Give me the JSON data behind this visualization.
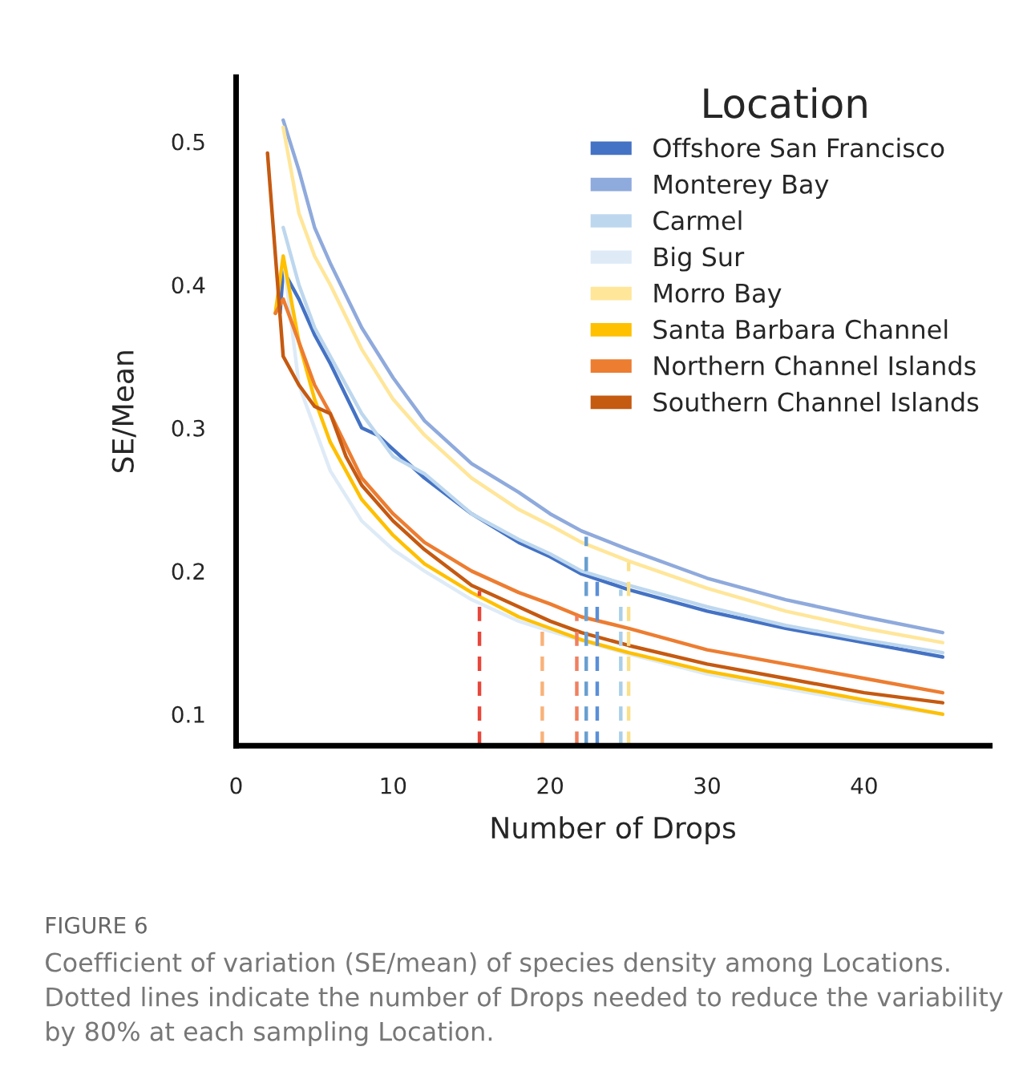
{
  "chart_data": {
    "type": "line",
    "xlabel": "Number of Drops",
    "ylabel": "SE/Mean",
    "legend_title": "Location",
    "legend": "top right",
    "grid": false,
    "xlim": [
      0,
      48
    ],
    "xticks": [
      0,
      10,
      20,
      30,
      40
    ],
    "ylim": [
      0.078,
      0.545
    ],
    "yticks": [
      0.1,
      0.2,
      0.3,
      0.4,
      0.5
    ],
    "series": [
      {
        "name": "Offshore San Francisco",
        "color": "#4472c4",
        "x": [
          2.8,
          3,
          4,
          5,
          6,
          8,
          9,
          10,
          12,
          15,
          18,
          20,
          22,
          25,
          30,
          35,
          40,
          45
        ],
        "values": [
          0.38,
          0.41,
          0.39,
          0.365,
          0.345,
          0.3,
          0.295,
          0.285,
          0.265,
          0.24,
          0.22,
          0.21,
          0.198,
          0.187,
          0.172,
          0.16,
          0.15,
          0.14
        ]
      },
      {
        "name": "Monterey Bay",
        "color": "#8faadc",
        "x": [
          3,
          4,
          5,
          6,
          8,
          10,
          12,
          15,
          18,
          20,
          22,
          25,
          30,
          35,
          40,
          45
        ],
        "values": [
          0.515,
          0.48,
          0.44,
          0.415,
          0.37,
          0.335,
          0.305,
          0.275,
          0.255,
          0.24,
          0.228,
          0.215,
          0.195,
          0.18,
          0.168,
          0.157
        ]
      },
      {
        "name": "Carmel",
        "color": "#bdd7ee",
        "x": [
          3,
          4,
          5,
          6,
          8,
          10,
          12,
          15,
          18,
          20,
          22,
          25,
          30,
          35,
          40,
          45
        ],
        "values": [
          0.44,
          0.4,
          0.37,
          0.35,
          0.31,
          0.28,
          0.268,
          0.24,
          0.222,
          0.212,
          0.2,
          0.19,
          0.175,
          0.162,
          0.152,
          0.143
        ]
      },
      {
        "name": "Big Sur",
        "color": "#deebf7",
        "x": [
          3,
          4,
          5,
          6,
          8,
          10,
          12,
          15,
          18,
          20,
          25,
          30,
          35,
          40,
          45
        ],
        "values": [
          0.42,
          0.33,
          0.3,
          0.27,
          0.235,
          0.215,
          0.2,
          0.18,
          0.165,
          0.158,
          0.142,
          0.128,
          0.118,
          0.108,
          0.1
        ]
      },
      {
        "name": "Morro Bay",
        "color": "#ffe699",
        "x": [
          3,
          4,
          5,
          6,
          8,
          10,
          12,
          15,
          18,
          20,
          22,
          25,
          30,
          35,
          40,
          45
        ],
        "values": [
          0.51,
          0.45,
          0.42,
          0.4,
          0.355,
          0.32,
          0.295,
          0.265,
          0.243,
          0.232,
          0.22,
          0.207,
          0.188,
          0.172,
          0.16,
          0.15
        ]
      },
      {
        "name": "Santa Barbara Channel",
        "color": "#ffc000",
        "x": [
          2.5,
          3,
          4,
          5,
          6,
          8,
          10,
          12,
          15,
          18,
          20,
          22,
          25,
          30,
          35,
          40,
          45
        ],
        "values": [
          0.38,
          0.42,
          0.36,
          0.32,
          0.29,
          0.25,
          0.225,
          0.205,
          0.185,
          0.168,
          0.16,
          0.152,
          0.143,
          0.13,
          0.12,
          0.11,
          0.1
        ]
      },
      {
        "name": "Northern Channel Islands",
        "color": "#ed7d31",
        "x": [
          2.5,
          3,
          4,
          5,
          6,
          8,
          10,
          12,
          15,
          18,
          20,
          22,
          25,
          30,
          35,
          40,
          45
        ],
        "values": [
          0.38,
          0.39,
          0.36,
          0.33,
          0.31,
          0.265,
          0.24,
          0.22,
          0.2,
          0.185,
          0.177,
          0.168,
          0.16,
          0.145,
          0.135,
          0.125,
          0.115
        ]
      },
      {
        "name": "Southern Channel Islands",
        "color": "#c55a11",
        "x": [
          2,
          3,
          4,
          5,
          6,
          7,
          8,
          10,
          12,
          15,
          18,
          20,
          22,
          25,
          30,
          35,
          40,
          45
        ],
        "values": [
          0.492,
          0.35,
          0.33,
          0.315,
          0.31,
          0.28,
          0.26,
          0.235,
          0.215,
          0.19,
          0.175,
          0.165,
          0.157,
          0.148,
          0.135,
          0.125,
          0.115,
          0.108
        ]
      },
      {
        "color": "#e8463a",
        "line_style": "dashed",
        "x": [
          15.5,
          15.5
        ],
        "values": [
          0.078,
          0.186
        ]
      },
      {
        "color": "#f9b27a",
        "line_style": "dashed",
        "x": [
          19.5,
          19.5
        ],
        "values": [
          0.078,
          0.162
        ]
      },
      {
        "color": "#f08060",
        "line_style": "dashed",
        "x": [
          21.7,
          21.7
        ],
        "values": [
          0.078,
          0.169
        ]
      },
      {
        "color": "#6a9fd0",
        "line_style": "dashed",
        "x": [
          22.3,
          22.3
        ],
        "values": [
          0.078,
          0.224
        ]
      },
      {
        "color": "#5b8fd8",
        "line_style": "dashed",
        "x": [
          23.0,
          23.0
        ],
        "values": [
          0.078,
          0.196
        ]
      },
      {
        "color": "#a9cfe8",
        "line_style": "dashed",
        "x": [
          24.5,
          24.5
        ],
        "values": [
          0.078,
          0.187
        ]
      },
      {
        "color": "#fbe08a",
        "line_style": "dashed",
        "x": [
          25.0,
          25.0
        ],
        "values": [
          0.078,
          0.206
        ]
      }
    ],
    "annotations": [
      "FIGURE 6",
      "Coefficient of variation (SE/mean) of species density among Locations. Dotted lines indicate the number of Drops needed to reduce the variability by 80% at each sampling Location."
    ]
  }
}
